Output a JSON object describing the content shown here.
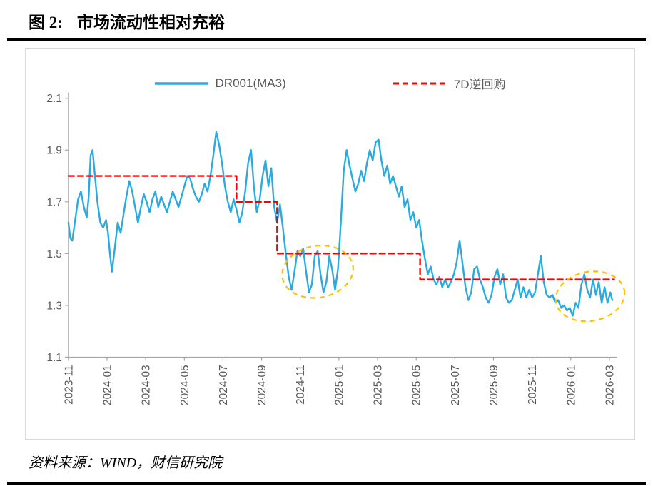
{
  "page": {
    "title_prefix": "图 2:",
    "title_main": "市场流动性相对充裕",
    "source": "资料来源：WIND，财信研究院"
  },
  "chart_data": {
    "type": "line",
    "title": "市场流动性相对充裕",
    "xlabel": "",
    "ylabel": "",
    "grid": false,
    "legend_position": "top",
    "ylim": [
      1.1,
      2.1
    ],
    "xlim": [
      0,
      28.3
    ],
    "x_unit": "months since 2023-11 (0 = 2023-11)",
    "yticks": [
      2.1,
      1.9,
      1.7,
      1.5,
      1.3,
      1.1
    ],
    "ytick_labels": [
      "2.1",
      "1.9",
      "1.7",
      "1.5",
      "1.3",
      "1.1"
    ],
    "xticks": [
      0,
      2,
      4,
      6,
      8,
      10,
      12,
      14,
      16,
      18,
      20,
      22,
      24,
      26,
      28
    ],
    "xtick_labels": [
      "2023-11",
      "2024-01",
      "2024-03",
      "2024-05",
      "2024-07",
      "2024-09",
      "2024-11",
      "2025-01",
      "2025-03",
      "2025-05",
      "2025-07",
      "2025-09",
      "2025-11",
      "2026-01",
      "2026-03"
    ],
    "axis_color": "#a6a6a6",
    "tick_label_color": "#595959",
    "series": [
      {
        "name": "DR001(MA3)",
        "slug": "dr001-ma3-line",
        "color": "#29abe2",
        "line_width": 2.4,
        "dash": null,
        "points": [
          [
            0,
            1.62
          ],
          [
            0.1,
            1.56
          ],
          [
            0.2,
            1.55
          ],
          [
            0.35,
            1.63
          ],
          [
            0.5,
            1.71
          ],
          [
            0.65,
            1.74
          ],
          [
            0.8,
            1.68
          ],
          [
            0.95,
            1.64
          ],
          [
            1.05,
            1.72
          ],
          [
            1.15,
            1.88
          ],
          [
            1.25,
            1.9
          ],
          [
            1.35,
            1.82
          ],
          [
            1.5,
            1.7
          ],
          [
            1.65,
            1.62
          ],
          [
            1.8,
            1.6
          ],
          [
            1.95,
            1.63
          ],
          [
            2.05,
            1.58
          ],
          [
            2.15,
            1.5
          ],
          [
            2.25,
            1.43
          ],
          [
            2.4,
            1.52
          ],
          [
            2.55,
            1.62
          ],
          [
            2.7,
            1.58
          ],
          [
            2.85,
            1.65
          ],
          [
            3,
            1.72
          ],
          [
            3.15,
            1.78
          ],
          [
            3.3,
            1.74
          ],
          [
            3.45,
            1.68
          ],
          [
            3.6,
            1.62
          ],
          [
            3.75,
            1.68
          ],
          [
            3.9,
            1.73
          ],
          [
            4.05,
            1.7
          ],
          [
            4.2,
            1.66
          ],
          [
            4.35,
            1.71
          ],
          [
            4.5,
            1.74
          ],
          [
            4.65,
            1.68
          ],
          [
            4.8,
            1.72
          ],
          [
            4.95,
            1.69
          ],
          [
            5.1,
            1.66
          ],
          [
            5.25,
            1.7
          ],
          [
            5.4,
            1.74
          ],
          [
            5.55,
            1.71
          ],
          [
            5.7,
            1.68
          ],
          [
            5.85,
            1.72
          ],
          [
            6,
            1.76
          ],
          [
            6.15,
            1.8
          ],
          [
            6.3,
            1.79
          ],
          [
            6.45,
            1.75
          ],
          [
            6.6,
            1.72
          ],
          [
            6.75,
            1.7
          ],
          [
            6.9,
            1.73
          ],
          [
            7.05,
            1.77
          ],
          [
            7.2,
            1.74
          ],
          [
            7.35,
            1.8
          ],
          [
            7.5,
            1.88
          ],
          [
            7.65,
            1.97
          ],
          [
            7.8,
            1.92
          ],
          [
            7.95,
            1.85
          ],
          [
            8.1,
            1.76
          ],
          [
            8.25,
            1.7
          ],
          [
            8.4,
            1.66
          ],
          [
            8.55,
            1.71
          ],
          [
            8.7,
            1.67
          ],
          [
            8.85,
            1.62
          ],
          [
            9,
            1.66
          ],
          [
            9.15,
            1.74
          ],
          [
            9.3,
            1.85
          ],
          [
            9.45,
            1.9
          ],
          [
            9.6,
            1.76
          ],
          [
            9.75,
            1.66
          ],
          [
            9.9,
            1.71
          ],
          [
            10.05,
            1.8
          ],
          [
            10.2,
            1.86
          ],
          [
            10.35,
            1.76
          ],
          [
            10.5,
            1.83
          ],
          [
            10.65,
            1.68
          ],
          [
            10.8,
            1.62
          ],
          [
            10.95,
            1.69
          ],
          [
            11.1,
            1.6
          ],
          [
            11.25,
            1.5
          ],
          [
            11.4,
            1.41
          ],
          [
            11.55,
            1.36
          ],
          [
            11.7,
            1.43
          ],
          [
            11.85,
            1.51
          ],
          [
            12,
            1.49
          ],
          [
            12.15,
            1.52
          ],
          [
            12.3,
            1.43
          ],
          [
            12.45,
            1.35
          ],
          [
            12.6,
            1.38
          ],
          [
            12.75,
            1.49
          ],
          [
            12.9,
            1.51
          ],
          [
            13.05,
            1.42
          ],
          [
            13.2,
            1.35
          ],
          [
            13.35,
            1.39
          ],
          [
            13.5,
            1.49
          ],
          [
            13.65,
            1.44
          ],
          [
            13.8,
            1.36
          ],
          [
            13.95,
            1.44
          ],
          [
            14.1,
            1.62
          ],
          [
            14.25,
            1.82
          ],
          [
            14.4,
            1.9
          ],
          [
            14.55,
            1.84
          ],
          [
            14.7,
            1.79
          ],
          [
            14.85,
            1.74
          ],
          [
            15,
            1.77
          ],
          [
            15.15,
            1.82
          ],
          [
            15.3,
            1.78
          ],
          [
            15.45,
            1.85
          ],
          [
            15.6,
            1.9
          ],
          [
            15.75,
            1.86
          ],
          [
            15.9,
            1.93
          ],
          [
            16.05,
            1.94
          ],
          [
            16.2,
            1.86
          ],
          [
            16.35,
            1.8
          ],
          [
            16.5,
            1.84
          ],
          [
            16.65,
            1.77
          ],
          [
            16.8,
            1.8
          ],
          [
            16.95,
            1.76
          ],
          [
            17.1,
            1.72
          ],
          [
            17.25,
            1.76
          ],
          [
            17.4,
            1.68
          ],
          [
            17.55,
            1.71
          ],
          [
            17.7,
            1.63
          ],
          [
            17.85,
            1.66
          ],
          [
            18,
            1.6
          ],
          [
            18.15,
            1.63
          ],
          [
            18.3,
            1.55
          ],
          [
            18.45,
            1.48
          ],
          [
            18.6,
            1.42
          ],
          [
            18.75,
            1.45
          ],
          [
            18.9,
            1.4
          ],
          [
            19.05,
            1.38
          ],
          [
            19.2,
            1.41
          ],
          [
            19.35,
            1.37
          ],
          [
            19.5,
            1.4
          ],
          [
            19.65,
            1.37
          ],
          [
            19.8,
            1.39
          ],
          [
            19.95,
            1.42
          ],
          [
            20.1,
            1.47
          ],
          [
            20.25,
            1.55
          ],
          [
            20.4,
            1.46
          ],
          [
            20.55,
            1.37
          ],
          [
            20.7,
            1.32
          ],
          [
            20.85,
            1.35
          ],
          [
            21,
            1.44
          ],
          [
            21.15,
            1.45
          ],
          [
            21.3,
            1.4
          ],
          [
            21.45,
            1.37
          ],
          [
            21.6,
            1.33
          ],
          [
            21.75,
            1.31
          ],
          [
            21.9,
            1.34
          ],
          [
            22.05,
            1.41
          ],
          [
            22.2,
            1.44
          ],
          [
            22.35,
            1.38
          ],
          [
            22.5,
            1.42
          ],
          [
            22.65,
            1.33
          ],
          [
            22.8,
            1.31
          ],
          [
            22.95,
            1.32
          ],
          [
            23.1,
            1.36
          ],
          [
            23.25,
            1.4
          ],
          [
            23.4,
            1.33
          ],
          [
            23.55,
            1.37
          ],
          [
            23.7,
            1.33
          ],
          [
            23.85,
            1.36
          ],
          [
            24,
            1.33
          ],
          [
            24.15,
            1.35
          ],
          [
            24.3,
            1.42
          ],
          [
            24.45,
            1.49
          ],
          [
            24.6,
            1.39
          ],
          [
            24.75,
            1.34
          ],
          [
            24.9,
            1.33
          ],
          [
            25.05,
            1.34
          ],
          [
            25.2,
            1.31
          ],
          [
            25.35,
            1.32
          ],
          [
            25.5,
            1.29
          ],
          [
            25.65,
            1.3
          ],
          [
            25.8,
            1.28
          ],
          [
            25.95,
            1.29
          ],
          [
            26.1,
            1.26
          ],
          [
            26.25,
            1.31
          ],
          [
            26.4,
            1.29
          ],
          [
            26.55,
            1.38
          ],
          [
            26.7,
            1.42
          ],
          [
            26.85,
            1.36
          ],
          [
            27,
            1.33
          ],
          [
            27.15,
            1.4
          ],
          [
            27.3,
            1.34
          ],
          [
            27.45,
            1.39
          ],
          [
            27.6,
            1.31
          ],
          [
            27.75,
            1.37
          ],
          [
            27.9,
            1.31
          ],
          [
            28.05,
            1.35
          ],
          [
            28.15,
            1.32
          ]
        ]
      },
      {
        "name": "7D逆回购",
        "slug": "7d-reverse-repo-line",
        "color": "#ff0000",
        "line_width": 2.4,
        "dash": "8 5",
        "points": [
          [
            0,
            1.8
          ],
          [
            8.7,
            1.8
          ],
          [
            8.7,
            1.7
          ],
          [
            10.8,
            1.7
          ],
          [
            10.8,
            1.5
          ],
          [
            18.2,
            1.5
          ],
          [
            18.2,
            1.4
          ],
          [
            28.25,
            1.4
          ]
        ]
      }
    ],
    "annotations": [
      {
        "shape": "ellipse",
        "name": "highlight-ellipse-2024-11",
        "color": "#ffc000",
        "dash": "7 6",
        "line_width": 2.2,
        "cx": 12.9,
        "cy": 1.43,
        "rx": 1.85,
        "ry": 0.1,
        "rotate": -10
      },
      {
        "shape": "ellipse",
        "name": "highlight-ellipse-2026-01",
        "color": "#ffc000",
        "dash": "7 6",
        "line_width": 2.2,
        "cx": 27.0,
        "cy": 1.335,
        "rx": 1.8,
        "ry": 0.095,
        "rotate": -10
      }
    ]
  }
}
